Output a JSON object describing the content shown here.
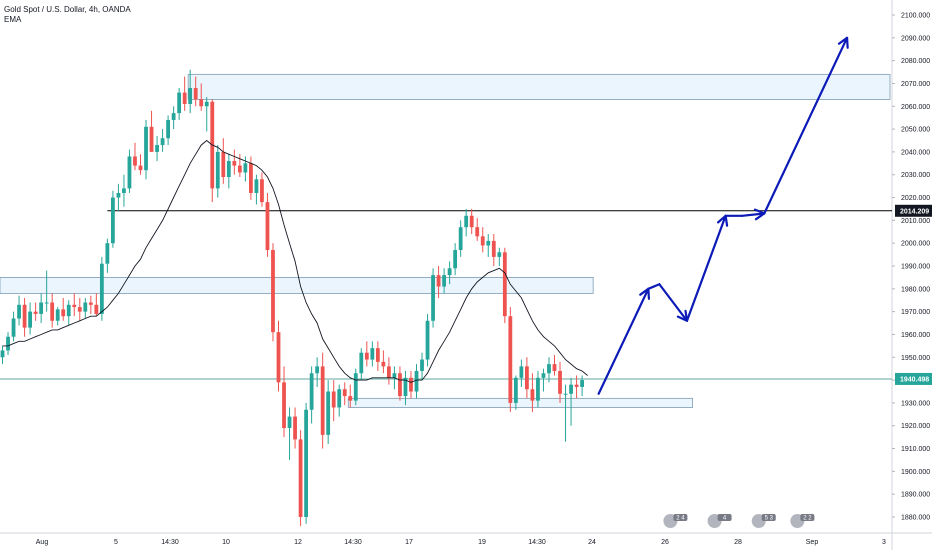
{
  "legend": {
    "title": "Gold Spot / U.S. Dollar, 4h, OANDA",
    "indicator": "EMA"
  },
  "colors": {
    "up": "#26a69a",
    "down": "#ef5350",
    "ema": "#131722",
    "zone_fill": "#e3f2fd",
    "zone_border": "#7e9bb3",
    "arrow": "#0c1ab8",
    "teal_line": "#5fa9a1",
    "black_line": "#000000"
  },
  "chart_data": {
    "type": "candlestick",
    "symbol": "Gold Spot / U.S. Dollar",
    "timeframe": "4h",
    "source": "OANDA",
    "ylim": [
      1875,
      2105
    ],
    "y_ticks": [
      "2100.000",
      "2090.000",
      "2080.000",
      "2070.000",
      "2060.000",
      "2050.000",
      "2040.000",
      "2030.000",
      "2020.000",
      "2010.000",
      "2000.000",
      "1990.000",
      "1980.000",
      "1970.000",
      "1960.000",
      "1950.000",
      "1940.000",
      "1930.000",
      "1920.000",
      "1910.000",
      "1900.000",
      "1890.000",
      "1880.000"
    ],
    "x_ticks": [
      "Aug",
      "5",
      "14:30",
      "10",
      "12",
      "14:30",
      "17",
      "19",
      "14:30",
      "24",
      "26",
      "28",
      "Sep",
      "3"
    ],
    "price_labels": {
      "black_level": {
        "value": 2014.2,
        "label": "2014.209"
      },
      "teal_level": {
        "value": 1940.5,
        "label": "1940.498"
      }
    },
    "candles": [
      {
        "o": 1950,
        "h": 1955,
        "l": 1947,
        "c": 1953
      },
      {
        "o": 1953,
        "h": 1961,
        "l": 1951,
        "c": 1959
      },
      {
        "o": 1959,
        "h": 1970,
        "l": 1957,
        "c": 1967
      },
      {
        "o": 1967,
        "h": 1977,
        "l": 1964,
        "c": 1973
      },
      {
        "o": 1973,
        "h": 1976,
        "l": 1959,
        "c": 1963
      },
      {
        "o": 1963,
        "h": 1974,
        "l": 1960,
        "c": 1970
      },
      {
        "o": 1970,
        "h": 1974,
        "l": 1966,
        "c": 1969
      },
      {
        "o": 1969,
        "h": 1978,
        "l": 1965,
        "c": 1974
      },
      {
        "o": 1974,
        "h": 1988,
        "l": 1970,
        "c": 1974
      },
      {
        "o": 1974,
        "h": 1978,
        "l": 1963,
        "c": 1966
      },
      {
        "o": 1966,
        "h": 1972,
        "l": 1964,
        "c": 1971
      },
      {
        "o": 1971,
        "h": 1976,
        "l": 1966,
        "c": 1968
      },
      {
        "o": 1968,
        "h": 1975,
        "l": 1964,
        "c": 1973
      },
      {
        "o": 1973,
        "h": 1978,
        "l": 1968,
        "c": 1972
      },
      {
        "o": 1972,
        "h": 1976,
        "l": 1966,
        "c": 1970
      },
      {
        "o": 1970,
        "h": 1976,
        "l": 1967,
        "c": 1974
      },
      {
        "o": 1974,
        "h": 1977,
        "l": 1969,
        "c": 1973
      },
      {
        "o": 1973,
        "h": 1978,
        "l": 1968,
        "c": 1969
      },
      {
        "o": 1969,
        "h": 1994,
        "l": 1966,
        "c": 1991
      },
      {
        "o": 1991,
        "h": 2002,
        "l": 1987,
        "c": 2000
      },
      {
        "o": 2000,
        "h": 2023,
        "l": 1998,
        "c": 2020
      },
      {
        "o": 2020,
        "h": 2026,
        "l": 2014,
        "c": 2022
      },
      {
        "o": 2022,
        "h": 2030,
        "l": 2016,
        "c": 2024
      },
      {
        "o": 2024,
        "h": 2041,
        "l": 2022,
        "c": 2038
      },
      {
        "o": 2038,
        "h": 2044,
        "l": 2032,
        "c": 2034
      },
      {
        "o": 2034,
        "h": 2039,
        "l": 2030,
        "c": 2032
      },
      {
        "o": 2032,
        "h": 2054,
        "l": 2028,
        "c": 2051
      },
      {
        "o": 2051,
        "h": 2058,
        "l": 2042,
        "c": 2040
      },
      {
        "o": 2040,
        "h": 2047,
        "l": 2036,
        "c": 2043
      },
      {
        "o": 2043,
        "h": 2050,
        "l": 2040,
        "c": 2046
      },
      {
        "o": 2046,
        "h": 2056,
        "l": 2043,
        "c": 2054
      },
      {
        "o": 2054,
        "h": 2060,
        "l": 2050,
        "c": 2057
      },
      {
        "o": 2057,
        "h": 2068,
        "l": 2054,
        "c": 2066
      },
      {
        "o": 2066,
        "h": 2073,
        "l": 2058,
        "c": 2061
      },
      {
        "o": 2061,
        "h": 2076,
        "l": 2057,
        "c": 2068
      },
      {
        "o": 2068,
        "h": 2073,
        "l": 2060,
        "c": 2063
      },
      {
        "o": 2063,
        "h": 2070,
        "l": 2058,
        "c": 2060
      },
      {
        "o": 2060,
        "h": 2064,
        "l": 2049,
        "c": 2062
      },
      {
        "o": 2062,
        "h": 2063,
        "l": 2018,
        "c": 2024
      },
      {
        "o": 2024,
        "h": 2043,
        "l": 2020,
        "c": 2040
      },
      {
        "o": 2040,
        "h": 2046,
        "l": 2026,
        "c": 2029
      },
      {
        "o": 2029,
        "h": 2039,
        "l": 2024,
        "c": 2036
      },
      {
        "o": 2036,
        "h": 2041,
        "l": 2030,
        "c": 2034
      },
      {
        "o": 2034,
        "h": 2039,
        "l": 2029,
        "c": 2031
      },
      {
        "o": 2031,
        "h": 2038,
        "l": 2027,
        "c": 2035
      },
      {
        "o": 2035,
        "h": 2038,
        "l": 2019,
        "c": 2022
      },
      {
        "o": 2022,
        "h": 2030,
        "l": 2017,
        "c": 2028
      },
      {
        "o": 2028,
        "h": 2031,
        "l": 2016,
        "c": 2018
      },
      {
        "o": 2018,
        "h": 2022,
        "l": 1994,
        "c": 1997
      },
      {
        "o": 1997,
        "h": 2000,
        "l": 1957,
        "c": 1961
      },
      {
        "o": 1961,
        "h": 1966,
        "l": 1935,
        "c": 1939
      },
      {
        "o": 1939,
        "h": 1946,
        "l": 1915,
        "c": 1919
      },
      {
        "o": 1919,
        "h": 1928,
        "l": 1905,
        "c": 1924
      },
      {
        "o": 1924,
        "h": 1928,
        "l": 1910,
        "c": 1914
      },
      {
        "o": 1914,
        "h": 1918,
        "l": 1876,
        "c": 1880
      },
      {
        "o": 1880,
        "h": 1930,
        "l": 1877,
        "c": 1927
      },
      {
        "o": 1927,
        "h": 1946,
        "l": 1921,
        "c": 1943
      },
      {
        "o": 1943,
        "h": 1950,
        "l": 1937,
        "c": 1946
      },
      {
        "o": 1946,
        "h": 1952,
        "l": 1910,
        "c": 1916
      },
      {
        "o": 1916,
        "h": 1940,
        "l": 1912,
        "c": 1935
      },
      {
        "o": 1935,
        "h": 1940,
        "l": 1922,
        "c": 1928
      },
      {
        "o": 1928,
        "h": 1938,
        "l": 1924,
        "c": 1936
      },
      {
        "o": 1936,
        "h": 1939,
        "l": 1929,
        "c": 1933
      },
      {
        "o": 1933,
        "h": 1938,
        "l": 1928,
        "c": 1931
      },
      {
        "o": 1931,
        "h": 1945,
        "l": 1929,
        "c": 1943
      },
      {
        "o": 1943,
        "h": 1954,
        "l": 1940,
        "c": 1952
      },
      {
        "o": 1952,
        "h": 1957,
        "l": 1946,
        "c": 1949
      },
      {
        "o": 1949,
        "h": 1957,
        "l": 1946,
        "c": 1954
      },
      {
        "o": 1954,
        "h": 1957,
        "l": 1944,
        "c": 1948
      },
      {
        "o": 1948,
        "h": 1953,
        "l": 1943,
        "c": 1946
      },
      {
        "o": 1946,
        "h": 1950,
        "l": 1938,
        "c": 1941
      },
      {
        "o": 1941,
        "h": 1946,
        "l": 1936,
        "c": 1943
      },
      {
        "o": 1943,
        "h": 1946,
        "l": 1931,
        "c": 1933
      },
      {
        "o": 1933,
        "h": 1944,
        "l": 1929,
        "c": 1941
      },
      {
        "o": 1941,
        "h": 1944,
        "l": 1932,
        "c": 1935
      },
      {
        "o": 1935,
        "h": 1947,
        "l": 1932,
        "c": 1944
      },
      {
        "o": 1944,
        "h": 1952,
        "l": 1940,
        "c": 1949
      },
      {
        "o": 1949,
        "h": 1969,
        "l": 1946,
        "c": 1966
      },
      {
        "o": 1966,
        "h": 1989,
        "l": 1963,
        "c": 1986
      },
      {
        "o": 1986,
        "h": 1990,
        "l": 1976,
        "c": 1981
      },
      {
        "o": 1981,
        "h": 1989,
        "l": 1978,
        "c": 1986
      },
      {
        "o": 1986,
        "h": 1992,
        "l": 1982,
        "c": 1989
      },
      {
        "o": 1989,
        "h": 2000,
        "l": 1986,
        "c": 1997
      },
      {
        "o": 1997,
        "h": 2010,
        "l": 1994,
        "c": 2007
      },
      {
        "o": 2007,
        "h": 2015,
        "l": 2003,
        "c": 2012
      },
      {
        "o": 2012,
        "h": 2015,
        "l": 2004,
        "c": 2007
      },
      {
        "o": 2007,
        "h": 2011,
        "l": 2001,
        "c": 2003
      },
      {
        "o": 2003,
        "h": 2007,
        "l": 1996,
        "c": 1999
      },
      {
        "o": 1999,
        "h": 2004,
        "l": 1994,
        "c": 2001
      },
      {
        "o": 2001,
        "h": 2004,
        "l": 1990,
        "c": 1994
      },
      {
        "o": 1994,
        "h": 1998,
        "l": 1990,
        "c": 1996
      },
      {
        "o": 1996,
        "h": 1998,
        "l": 1965,
        "c": 1968
      },
      {
        "o": 1968,
        "h": 1972,
        "l": 1926,
        "c": 1930
      },
      {
        "o": 1930,
        "h": 1942,
        "l": 1927,
        "c": 1941
      },
      {
        "o": 1941,
        "h": 1949,
        "l": 1937,
        "c": 1946
      },
      {
        "o": 1946,
        "h": 1950,
        "l": 1932,
        "c": 1936
      },
      {
        "o": 1936,
        "h": 1943,
        "l": 1926,
        "c": 1931
      },
      {
        "o": 1931,
        "h": 1944,
        "l": 1928,
        "c": 1941
      },
      {
        "o": 1941,
        "h": 1945,
        "l": 1935,
        "c": 1943
      },
      {
        "o": 1943,
        "h": 1950,
        "l": 1939,
        "c": 1947
      },
      {
        "o": 1947,
        "h": 1951,
        "l": 1942,
        "c": 1944
      },
      {
        "o": 1944,
        "h": 1948,
        "l": 1930,
        "c": 1934
      },
      {
        "o": 1934,
        "h": 1938,
        "l": 1913,
        "c": 1934
      },
      {
        "o": 1934,
        "h": 1941,
        "l": 1920,
        "c": 1938
      },
      {
        "o": 1938,
        "h": 1942,
        "l": 1932,
        "c": 1937
      },
      {
        "o": 1937,
        "h": 1942,
        "l": 1933,
        "c": 1940
      }
    ],
    "ema": [
      1955,
      1955,
      1956,
      1957,
      1957,
      1958,
      1959,
      1960,
      1961,
      1962,
      1962,
      1963,
      1964,
      1965,
      1966,
      1967,
      1968,
      1968,
      1970,
      1972,
      1975,
      1978,
      1982,
      1986,
      1990,
      1993,
      1998,
      2002,
      2006,
      2010,
      2015,
      2020,
      2025,
      2030,
      2035,
      2039,
      2043,
      2045,
      2043,
      2042,
      2040,
      2039,
      2038,
      2037,
      2036,
      2035,
      2034,
      2032,
      2029,
      2024,
      2017,
      2008,
      2000,
      1992,
      1981,
      1974,
      1969,
      1965,
      1958,
      1954,
      1950,
      1946,
      1943,
      1941,
      1940,
      1940,
      1940,
      1941,
      1941,
      1941,
      1941,
      1941,
      1940,
      1940,
      1939,
      1940,
      1940,
      1943,
      1948,
      1953,
      1957,
      1961,
      1966,
      1971,
      1976,
      1980,
      1983,
      1985,
      1987,
      1988,
      1989,
      1987,
      1982,
      1979,
      1976,
      1971,
      1966,
      1962,
      1959,
      1957,
      1955,
      1952,
      1949,
      1947,
      1945,
      1944,
      1942
    ],
    "zones": [
      {
        "y1": 2063,
        "y2": 2074,
        "start_index": 34,
        "extends_right": true
      },
      {
        "y1": 1978,
        "y2": 1985,
        "start_index": -1,
        "end_index": 107
      },
      {
        "y1": 1928,
        "y2": 1932,
        "start_index": 63,
        "end_index": 125
      }
    ],
    "horizontal_lines": [
      {
        "value": 2014.2,
        "start_index": 19,
        "color_key": "black_line"
      },
      {
        "value": 1940.5,
        "start_index": -1,
        "color_key": "teal_line"
      }
    ],
    "projection_path": [
      {
        "index": 108,
        "value": 1934
      },
      {
        "index": 117,
        "value": 1980
      },
      {
        "index": 119,
        "value": 1982
      },
      {
        "index": 124,
        "value": 1966
      },
      {
        "index": 131,
        "value": 2012
      },
      {
        "index": 134,
        "value": 2012
      },
      {
        "index": 138,
        "value": 2013
      },
      {
        "index": 153,
        "value": 2090
      }
    ],
    "events": [
      {
        "index": 121,
        "label": "2 4"
      },
      {
        "index": 129,
        "label": "4"
      },
      {
        "index": 137,
        "label": "5 3"
      },
      {
        "index": 144,
        "label": "2 2"
      }
    ]
  }
}
